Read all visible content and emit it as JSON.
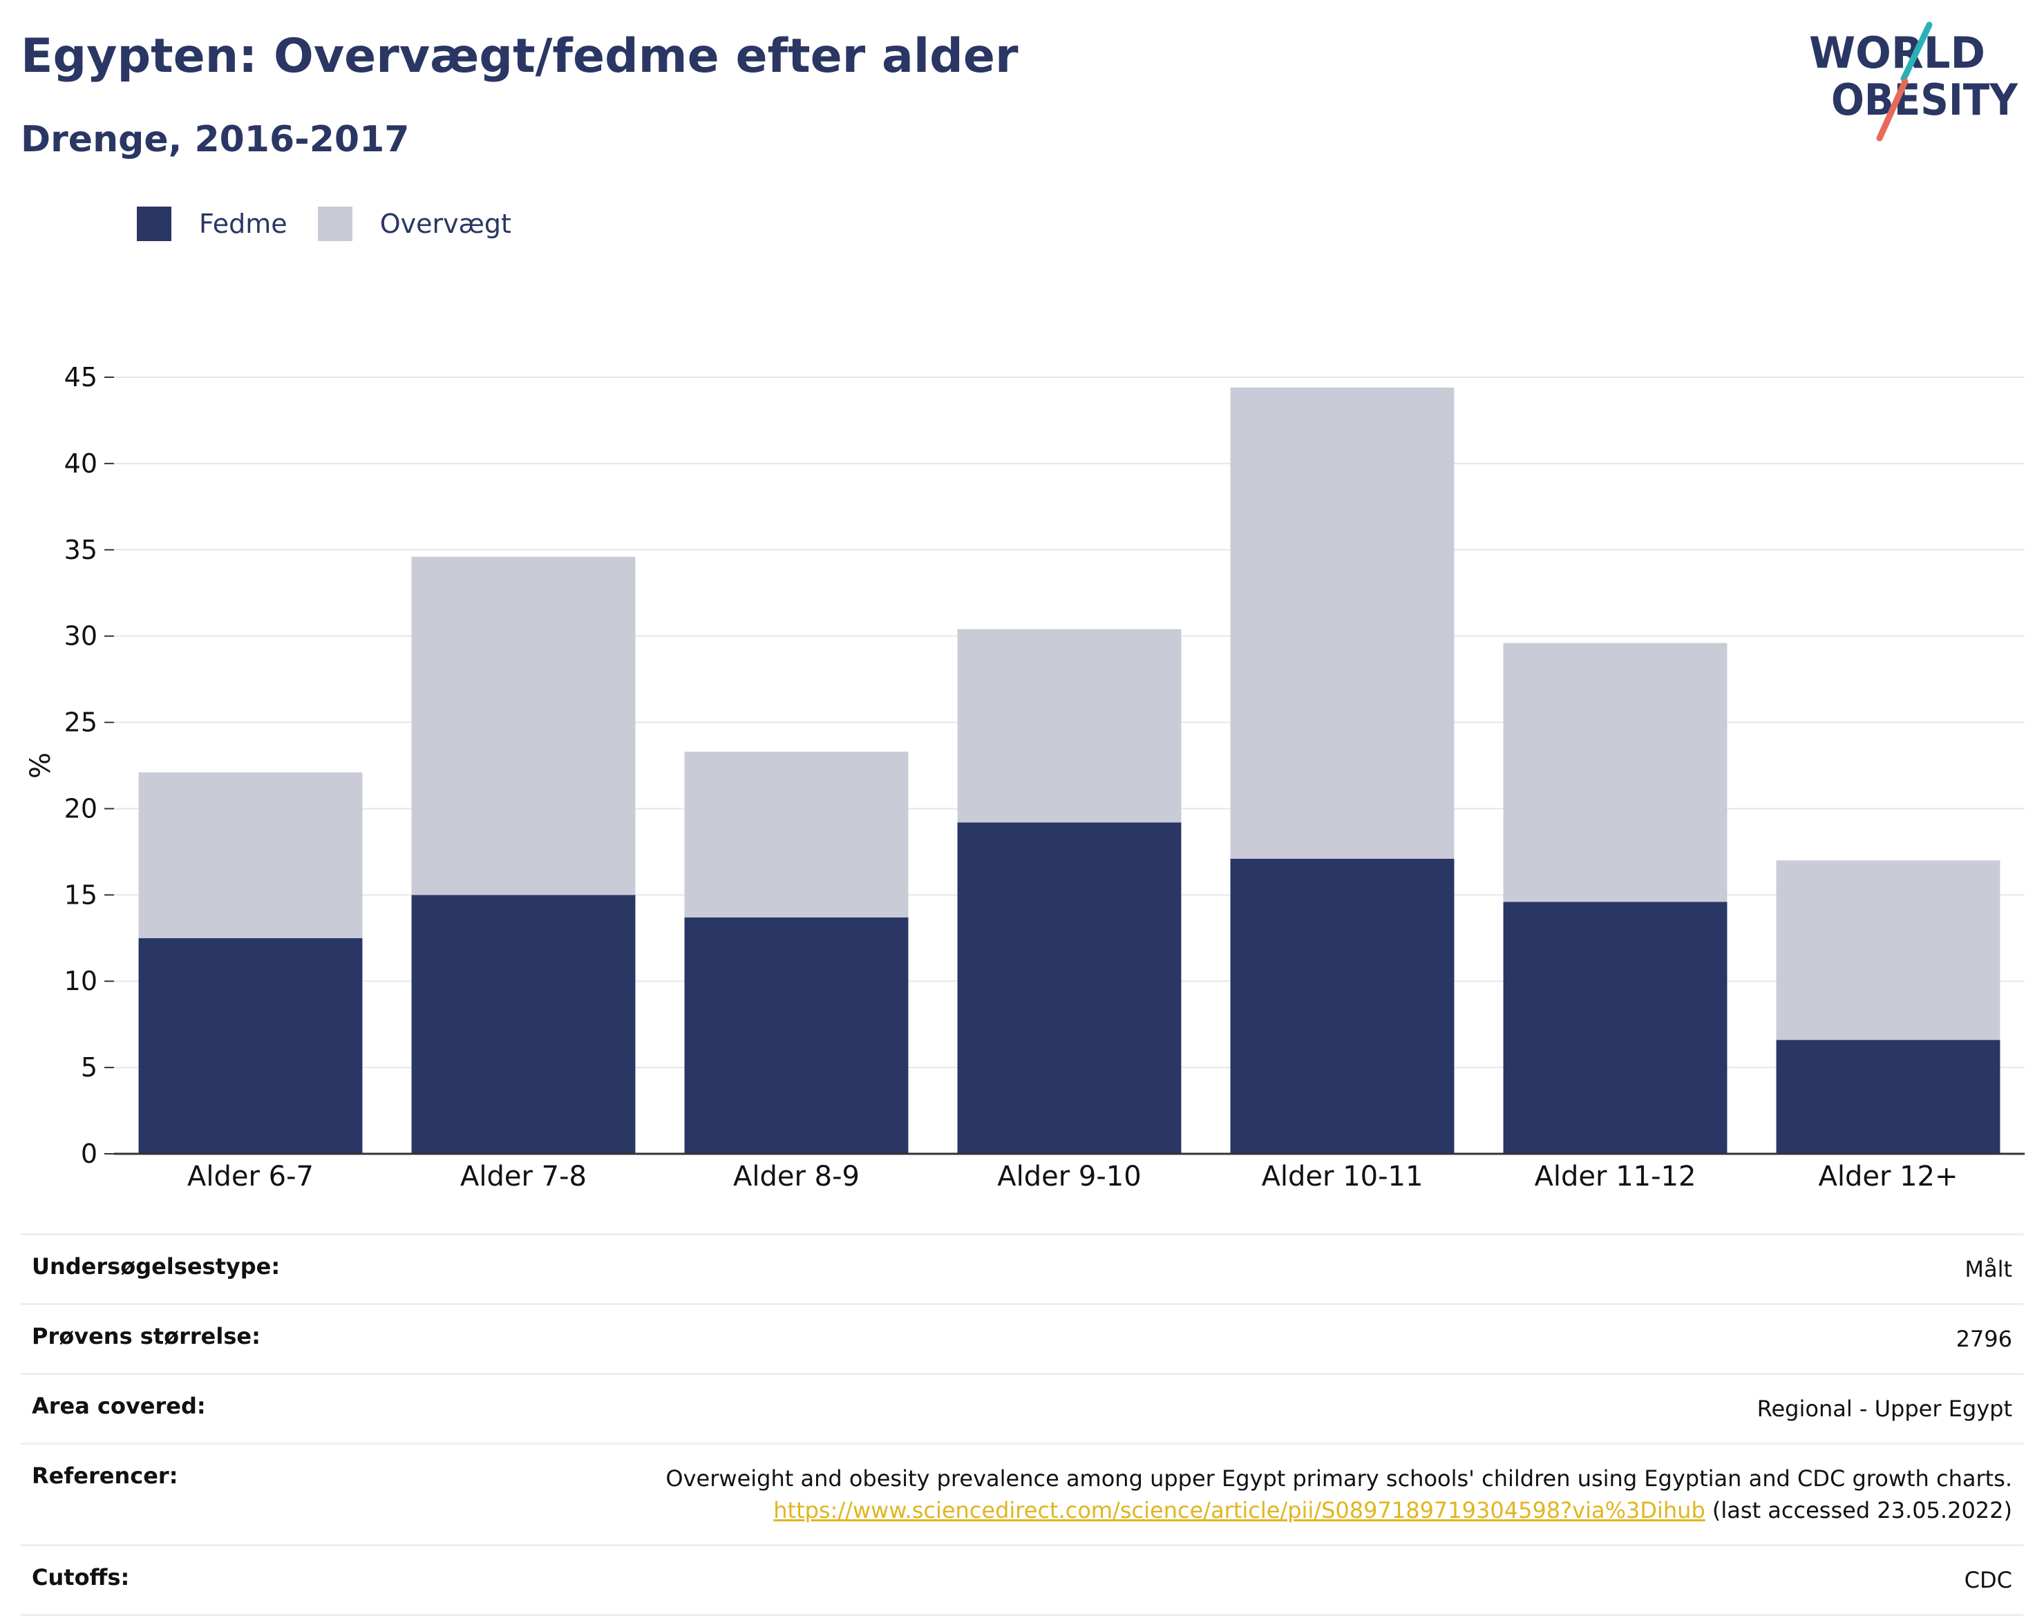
{
  "header": {
    "title": "Egypten: Overvægt/fedme efter alder",
    "subtitle": "Drenge, 2016-2017",
    "logo_line1": "WORLD",
    "logo_line2": "OBESITY"
  },
  "legend": [
    {
      "label": "Fedme",
      "color": "#2a3663"
    },
    {
      "label": "Overvægt",
      "color": "#c9cbd7"
    }
  ],
  "chart_data": {
    "type": "bar",
    "stacked": true,
    "categories": [
      "Alder 6-7",
      "Alder 7-8",
      "Alder 8-9",
      "Alder 9-10",
      "Alder 10-11",
      "Alder 11-12",
      "Alder 12+"
    ],
    "series": [
      {
        "name": "Fedme",
        "color": "#2a3663",
        "values": [
          12.5,
          15.0,
          13.7,
          19.2,
          17.1,
          14.6,
          6.6
        ]
      },
      {
        "name": "Overvægt",
        "color": "#c9cbd7",
        "values": [
          9.6,
          19.6,
          9.6,
          11.2,
          27.3,
          15.0,
          10.4
        ]
      }
    ],
    "ylabel": "%",
    "xlabel": "",
    "ylim": [
      0,
      45
    ],
    "yticks": [
      0,
      5,
      10,
      15,
      20,
      25,
      30,
      35,
      40,
      45
    ],
    "grid": true,
    "legend_position": "top-left"
  },
  "meta": {
    "survey_type_label": "Undersøgelsestype:",
    "survey_type_value": "Målt",
    "sample_size_label": "Prøvens størrelse:",
    "sample_size_value": "2796",
    "area_label": "Area covered:",
    "area_value": "Regional - Upper Egypt",
    "references_label": "Referencer:",
    "references_text": "Overweight and obesity prevalence among upper Egypt primary schools' children using Egyptian and CDC growth charts.",
    "references_url": "https://www.sciencedirect.com/science/article/pii/S0897189719304598?via%3Dihub",
    "references_accessed": "(last accessed 23.05.2022)",
    "cutoffs_label": "Cutoffs:",
    "cutoffs_value": "CDC"
  }
}
